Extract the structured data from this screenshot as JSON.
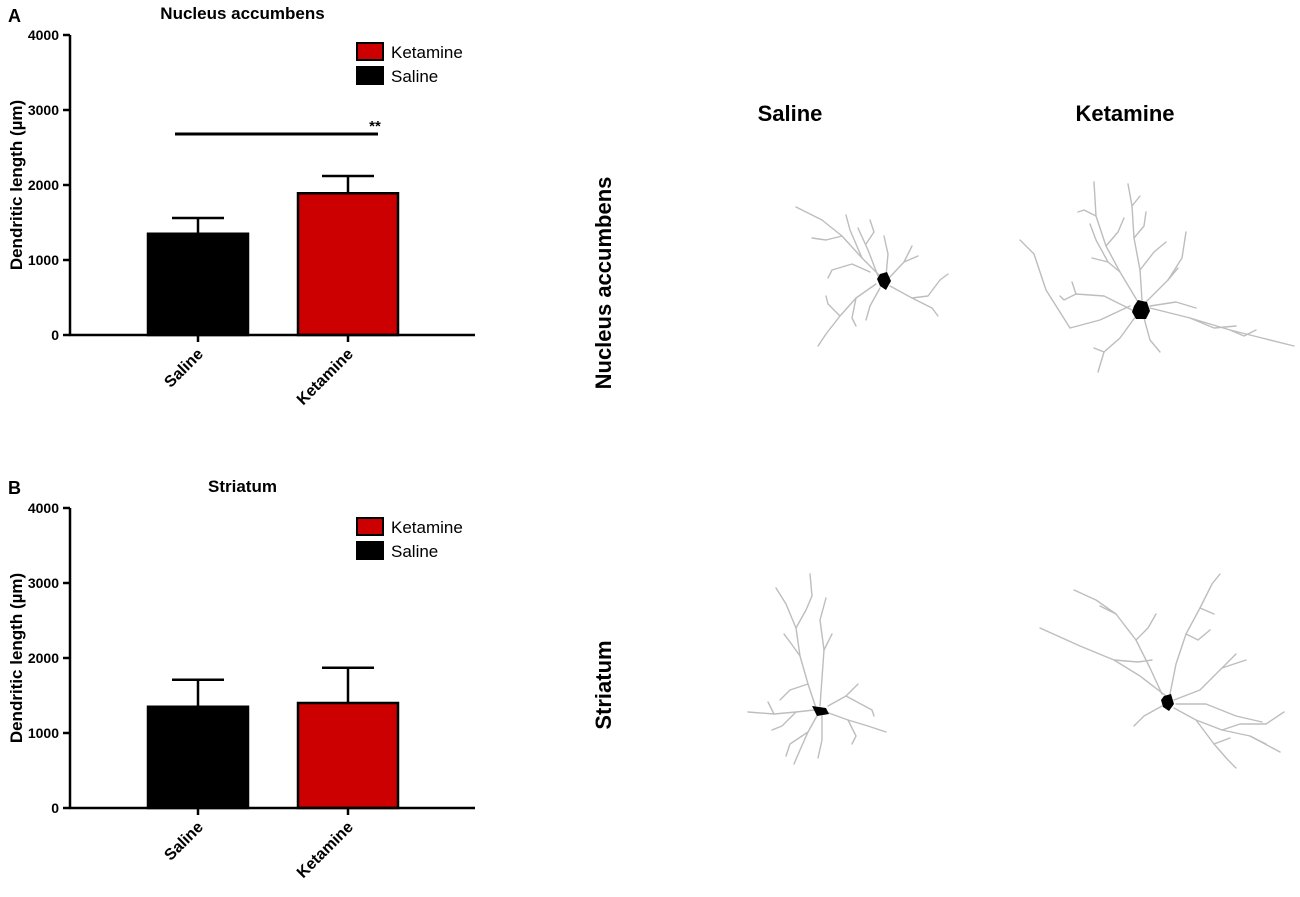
{
  "chart_data": [
    {
      "panel": "A",
      "type": "bar",
      "title": "Nucleus accumbens",
      "ylabel": "Dendritic length (µm)",
      "ylim": [
        0,
        4000
      ],
      "yticks": [
        "0",
        "1000",
        "2000",
        "3000",
        "4000"
      ],
      "categories": [
        "Saline",
        "Ketamine"
      ],
      "values": [
        1350,
        1890
      ],
      "errors": [
        210,
        230
      ],
      "bar_colors": [
        "#000000",
        "#cc0000"
      ],
      "legend": [
        {
          "label": "Ketamine",
          "color": "#cc0000"
        },
        {
          "label": "Saline",
          "color": "#000000"
        }
      ],
      "legend_position": "top-right",
      "significance": {
        "label": "**",
        "y": 2680
      }
    },
    {
      "panel": "B",
      "type": "bar",
      "title": "Striatum",
      "ylabel": "Dendritic length (µm)",
      "ylim": [
        0,
        4000
      ],
      "yticks": [
        "0",
        "1000",
        "2000",
        "3000",
        "4000"
      ],
      "categories": [
        "Saline",
        "Ketamine"
      ],
      "values": [
        1350,
        1400
      ],
      "errors": [
        360,
        470
      ],
      "bar_colors": [
        "#000000",
        "#cc0000"
      ],
      "legend": [
        {
          "label": "Ketamine",
          "color": "#cc0000"
        },
        {
          "label": "Saline",
          "color": "#000000"
        }
      ],
      "legend_position": "top-right"
    }
  ],
  "tracings": {
    "column_labels": [
      "Saline",
      "Ketamine"
    ],
    "row_labels": [
      "Nucleus accumbens",
      "Striatum"
    ]
  }
}
